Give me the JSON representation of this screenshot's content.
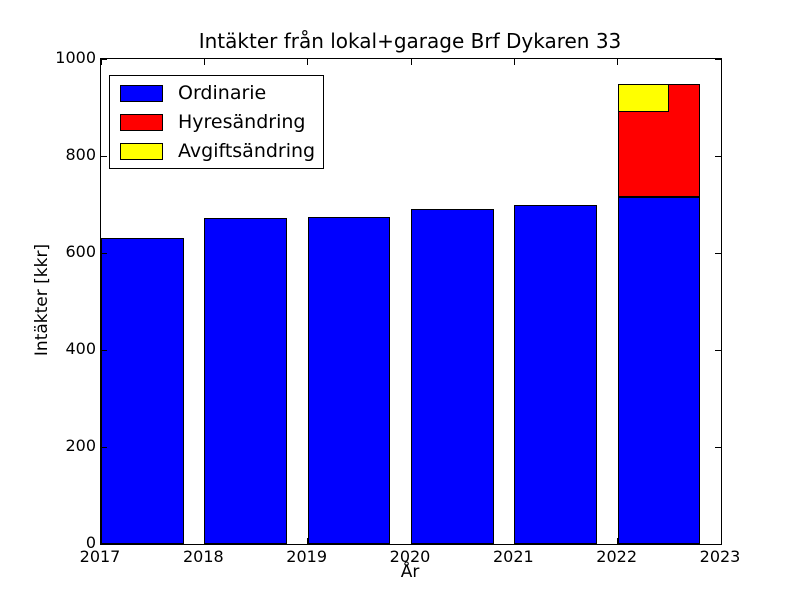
{
  "chart_data": {
    "type": "bar",
    "stacked": true,
    "title": "Intäkter från lokal+garage Brf Dykaren 33",
    "xlabel": "År",
    "ylabel": "Intäkter [kkr]",
    "xlim": [
      2017,
      2023
    ],
    "ylim": [
      0,
      1000
    ],
    "x_ticks": [
      2017,
      2018,
      2019,
      2020,
      2021,
      2022,
      2023
    ],
    "x_tick_labels": [
      "2017",
      "2018",
      "2019",
      "2020",
      "2021",
      "2022",
      "2023"
    ],
    "y_ticks": [
      0,
      200,
      400,
      600,
      800,
      1000
    ],
    "y_tick_labels": [
      "0",
      "200",
      "400",
      "600",
      "800",
      "1000"
    ],
    "grid": false,
    "background": "#ffffff",
    "axis_color": "#000000",
    "legend_position": "upper-left",
    "bar_align": "left-edge-on-tick",
    "bar_width_years": 0.8,
    "overlay_bar_width_years": 0.5,
    "years": [
      2017,
      2018,
      2019,
      2020,
      2021,
      2022
    ],
    "series": [
      {
        "name": "Ordinarie",
        "color": "#0000ff",
        "values": [
          630,
          672,
          675,
          691,
          700,
          716
        ]
      },
      {
        "name": "Hyresändring",
        "color": "#ff0000",
        "values": [
          0,
          0,
          0,
          0,
          0,
          232
        ]
      },
      {
        "name": "Avgiftsändring",
        "color": "#ffff00",
        "values": [
          0,
          0,
          0,
          0,
          0,
          58
        ],
        "render": "overlay-at-stack-top"
      }
    ]
  }
}
